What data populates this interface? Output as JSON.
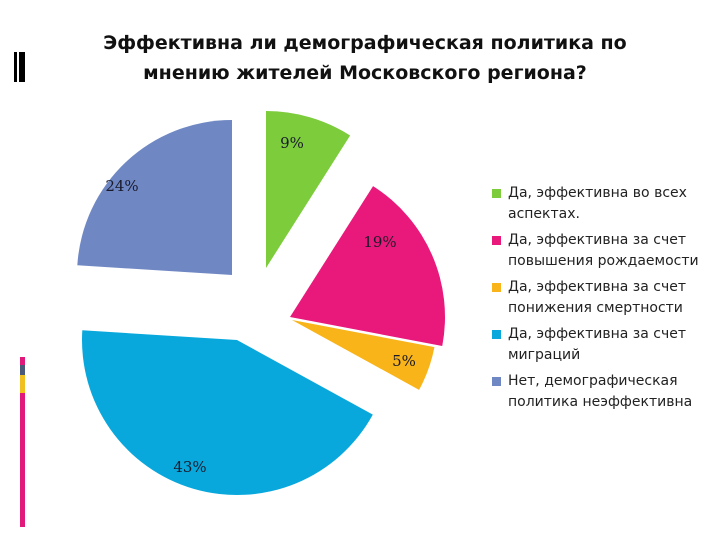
{
  "title": "Эффективна ли демографическая политика по мнению жителей Московского региона?",
  "title_lines": [
    "Эффективна ли демографическая политика по",
    "мнению жителей Московского региона?"
  ],
  "decorations": {
    "top_bar_color": "#000000",
    "side_bar_segments": [
      {
        "color": "#e0197a",
        "height": 8
      },
      {
        "color": "#4a5a78",
        "height": 10
      },
      {
        "color": "#f0c020",
        "height": 18
      },
      {
        "color": "#e0197a",
        "height": 134
      }
    ]
  },
  "legend": [
    {
      "label": "Да, эффективна во всех аспектах.",
      "color": "#7ccc3c"
    },
    {
      "label": "Да, эффективна за счет повышения рождаемости",
      "color": "#e8197a"
    },
    {
      "label": "Да, эффективна за счет понижения смертности",
      "color": "#f8b418"
    },
    {
      "label": "Да, эффективна за счет миграций",
      "color": "#08a8dc"
    },
    {
      "label": "Нет, демографическая политика неэффективна",
      "color": "#6f88c4"
    }
  ],
  "chart_data": {
    "type": "pie",
    "title": "Эффективна ли демографическая политика по мнению жителей Московского региона?",
    "exploded": true,
    "start_angle_deg": 0,
    "direction": "clockwise",
    "legend_position": "right",
    "categories": [
      "Да, эффективна во всех аспектах.",
      "Да, эффективна за счет повышения рождаемости",
      "Да, эффективна за счет понижения смертности",
      "Да, эффективна за счет миграций",
      "Нет, демографическая политика неэффективна"
    ],
    "values": [
      9,
      19,
      5,
      43,
      24
    ],
    "labels": [
      "9%",
      "19%",
      "5%",
      "43%",
      "24%"
    ],
    "colors": [
      "#7ccc3c",
      "#e8197a",
      "#f8b418",
      "#08a8dc",
      "#6f88c4"
    ]
  }
}
